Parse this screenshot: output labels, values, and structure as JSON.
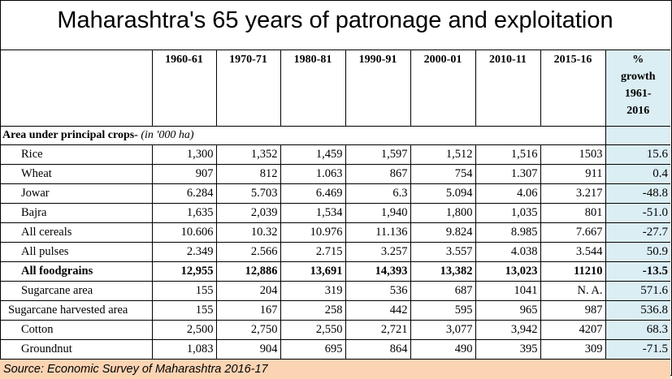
{
  "title": "Maharashtra's  65 years of patronage and exploitation",
  "columns": [
    "1960-61",
    "1970-71",
    "1980-81",
    "1990-91",
    "2000-01",
    "2010-11",
    "2015-16"
  ],
  "growth_header": [
    "%",
    "growth",
    "1961-",
    "2016"
  ],
  "section": {
    "label": "Area under principal crops-",
    "unit": "(in '000 ha)"
  },
  "rows": [
    {
      "name": "Rice",
      "values": [
        "1,300",
        "1,352",
        "1,459",
        "1,597",
        "1,512",
        "1,516",
        "1503"
      ],
      "growth": "15.6"
    },
    {
      "name": "Wheat",
      "values": [
        "907",
        "812",
        "1.063",
        "867",
        "754",
        "1.307",
        "911"
      ],
      "growth": "0.4"
    },
    {
      "name": "Jowar",
      "values": [
        "6.284",
        "5.703",
        "6.469",
        "6.3",
        "5.094",
        "4.06",
        "3.217"
      ],
      "growth": "-48.8"
    },
    {
      "name": "Bajra",
      "values": [
        "1,635",
        "2,039",
        "1,534",
        "1,940",
        "1,800",
        "1,035",
        "801"
      ],
      "growth": "-51.0"
    },
    {
      "name": "All cereals",
      "values": [
        "10.606",
        "10.32",
        "10.976",
        "11.136",
        "9.824",
        "8.985",
        "7.667"
      ],
      "growth": "-27.7"
    },
    {
      "name": "All pulses",
      "values": [
        "2.349",
        "2.566",
        "2.715",
        "3.257",
        "3.557",
        "4.038",
        "3.544"
      ],
      "growth": "50.9"
    },
    {
      "name": "All foodgrains",
      "values": [
        "12,955",
        "12,886",
        "13,691",
        "14,393",
        "13,382",
        "13,023",
        "11210"
      ],
      "growth": "-13.5",
      "bold": true
    },
    {
      "name": "Sugarcane area",
      "values": [
        "155",
        "204",
        "319",
        "536",
        "687",
        "1041",
        "N. A."
      ],
      "growth": "571.6"
    },
    {
      "name": "Sugarcane harvested area",
      "values": [
        "155",
        "167",
        "258",
        "442",
        "595",
        "965",
        "987"
      ],
      "growth": "536.8"
    },
    {
      "name": "Cotton",
      "values": [
        "2,500",
        "2,750",
        "2,550",
        "2,721",
        "3,077",
        "3,942",
        "4207"
      ],
      "growth": "68.3"
    },
    {
      "name": "Groundnut",
      "values": [
        "1,083",
        "904",
        "695",
        "864",
        "490",
        "395",
        "309"
      ],
      "growth": "-71.5"
    }
  ],
  "source": "Source: Economic Survey of Maharashtra 2016-17",
  "colors": {
    "growth_fill": "#dbeef4",
    "source_fill": "#fbd4b4"
  }
}
